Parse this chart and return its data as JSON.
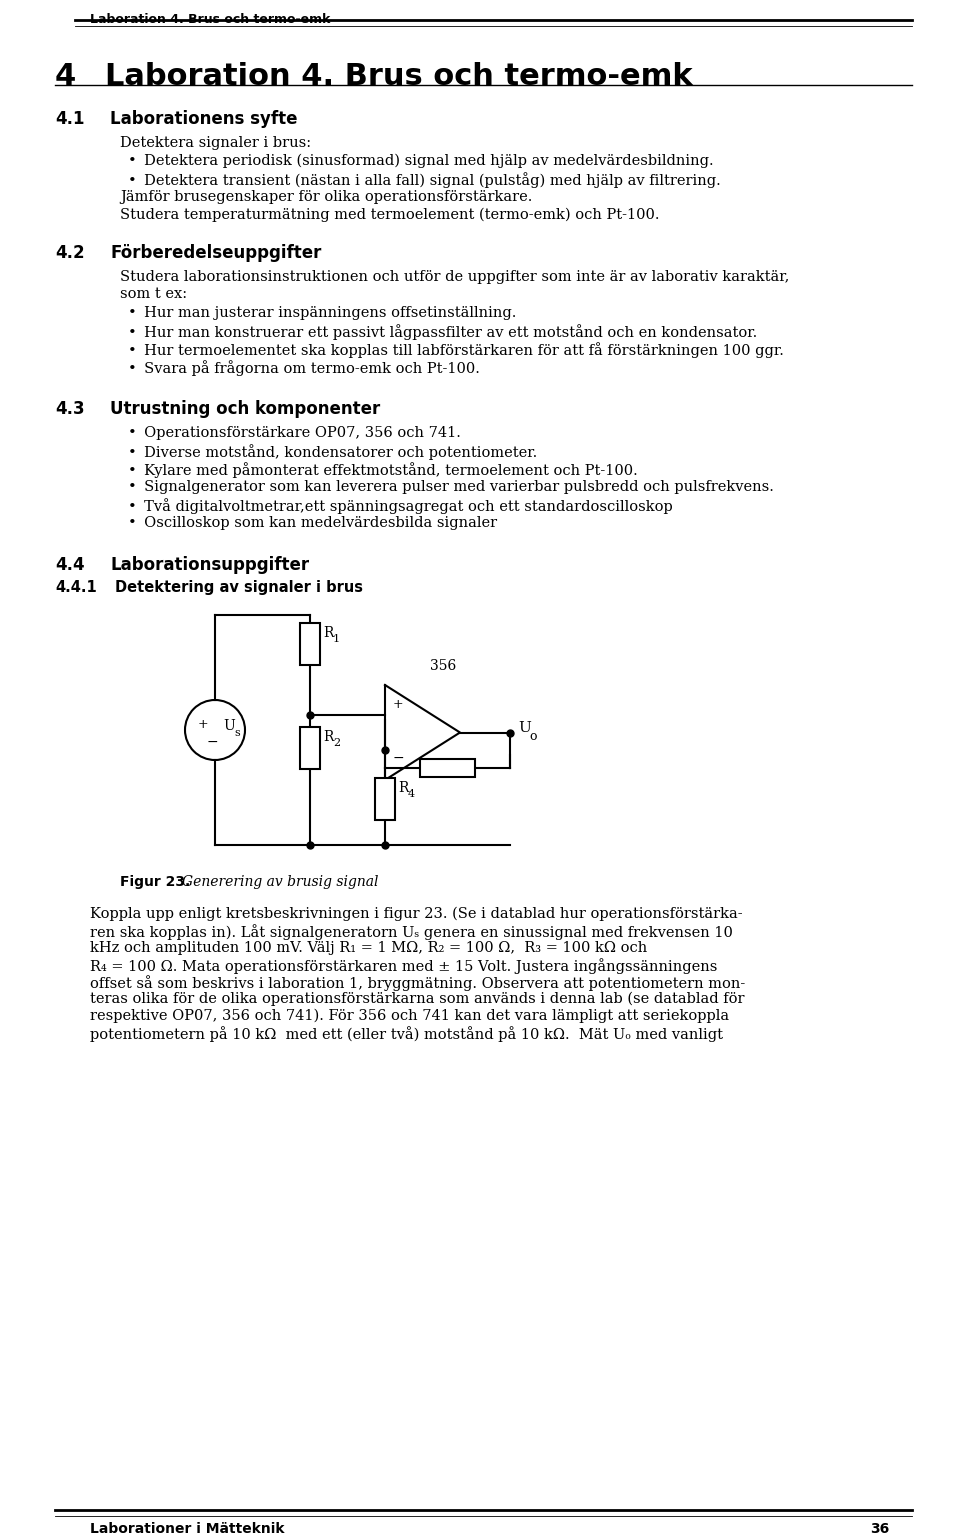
{
  "header_text": "Laboration 4. Brus och termo-emk",
  "chapter_num": "4",
  "chapter_title": "Laboration 4. Brus och termo-emk",
  "section_41_num": "4.1",
  "section_41_title": "Laborationens syfte",
  "section_41_intro": "Detektera signaler i brus:",
  "section_41_bullets": [
    "Detektera periodisk (sinusformad) signal med hjälp av medelvärdesbildning.",
    "Detektera transient (nästan i alla fall) signal (pulståg) med hjälp av filtrering."
  ],
  "section_41_extra": [
    "Jämför brusegenskaper för olika operationsförstärkare.",
    "Studera temperaturmätning med termoelement (termo-emk) och Pt-100."
  ],
  "section_42_num": "4.2",
  "section_42_title": "Förberedelseuppgifter",
  "section_42_intro": "Studera laborationsinstruktionen och utför de uppgifter som inte är av laborativ karaktär,\nsom t ex:",
  "section_42_bullets": [
    "Hur man justerar inspänningens offsetinställning.",
    "Hur man konstruerar ett passivt lågpassfilter av ett motstånd och en kondensator.",
    "Hur termoelementet ska kopplas till labförstärkaren för att få förstärkningen 100 ggr.",
    "Svara på frågorna om termo-emk och Pt-100."
  ],
  "section_43_num": "4.3",
  "section_43_title": "Utrustning och komponenter",
  "section_43_bullets": [
    "Operationsförstärkare OP07, 356 och 741.",
    "Diverse motstånd, kondensatorer och potentiometer.",
    "Kylare med påmonterat effektmotstånd, termoelement och Pt-100.",
    "Signalgenerator som kan leverera pulser med varierbar pulsbredd och pulsfrekvens.",
    "Två digitalvoltmetrar,ett spänningsagregat och ett standardoscilloskop",
    "Oscilloskop som kan medelvärdesbilda signaler"
  ],
  "section_44_num": "4.4",
  "section_44_title": "Laborationsuppgifter",
  "section_441_num": "4.4.1",
  "section_441_title": "Detektering av signaler i brus",
  "fig_caption_bold": "Figur 23.",
  "fig_caption_italic": "Generering av brusig signal",
  "bottom_left": "Laborationer i Mätteknik",
  "bottom_right": "36",
  "para_lines": [
    "Koppla upp enligt kretsbeskrivningen i figur 23. (Se i datablad hur operationsförstärka-",
    "ren ska kopplas in). Låt signalgeneratorn Uₛ genera en sinussignal med frekvensen 10",
    "kHz och amplituden 100 mV. Välj R₁ = 1 MΩ, R₂ = 100 Ω,  R₃ = 100 kΩ och",
    "R₄ = 100 Ω. Mata operationsförstärkaren med ± 15 Volt. Justera ingångssänningens",
    "offset så som beskrivs i laboration 1, bryggmätning. Observera att potentiometern mon-",
    "teras olika för de olika operationsförstärkarna som används i denna lab (se datablad för",
    "respektive OP07, 356 och 741). För 356 och 741 kan det vara lämpligt att seriekoppla",
    "potentiometern på 10 kΩ  med ett (eller två) motstånd på 10 kΩ.  Mät Uₒ med vanligt"
  ]
}
